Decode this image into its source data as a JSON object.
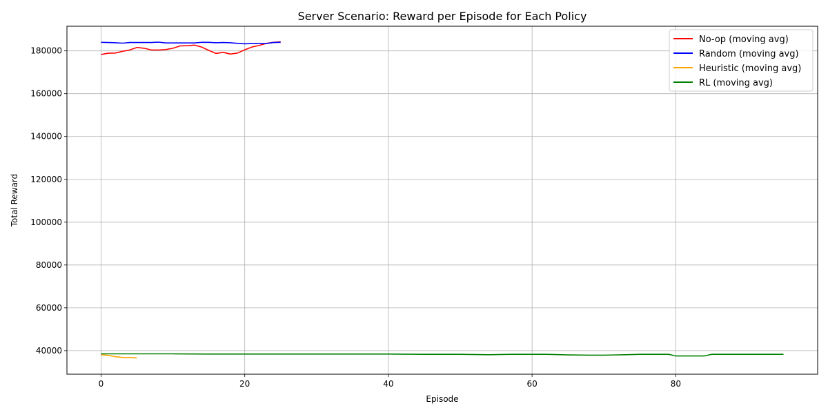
{
  "chart_data": {
    "type": "line",
    "title": "Server Scenario: Reward per Episode for Each Policy",
    "xlabel": "Episode",
    "ylabel": "Total Reward",
    "xlim": [
      -4.75,
      99.75
    ],
    "ylim": [
      29000,
      191500
    ],
    "xticks": [
      0,
      20,
      40,
      60,
      80
    ],
    "yticks": [
      40000,
      60000,
      80000,
      100000,
      120000,
      140000,
      160000,
      180000
    ],
    "grid": true,
    "legend_position": "top-right",
    "series": [
      {
        "name": "No-op (moving avg)",
        "color": "#ff0000",
        "x": [
          0,
          1,
          2,
          3,
          4,
          5,
          6,
          7,
          8,
          9,
          10,
          11,
          12,
          13,
          14,
          15,
          16,
          17,
          18,
          19,
          20,
          21,
          22,
          23,
          24,
          25
        ],
        "y": [
          178300,
          178900,
          179000,
          179800,
          180400,
          181600,
          181200,
          180400,
          180400,
          180600,
          181200,
          182300,
          182400,
          182700,
          181800,
          180200,
          178800,
          179300,
          178500,
          179000,
          180500,
          181800,
          182500,
          183500,
          184000,
          184200
        ]
      },
      {
        "name": "Random (moving avg)",
        "color": "#0000ff",
        "x": [
          0,
          1,
          2,
          3,
          4,
          5,
          6,
          7,
          8,
          9,
          10,
          11,
          12,
          13,
          14,
          15,
          16,
          17,
          18,
          19,
          20,
          21,
          22,
          23,
          24,
          25
        ],
        "y": [
          184000,
          183900,
          183800,
          183600,
          183900,
          183900,
          183900,
          183900,
          184100,
          183700,
          183700,
          183700,
          183700,
          183700,
          184000,
          184000,
          183800,
          183900,
          183800,
          183500,
          183300,
          183400,
          183400,
          183400,
          183900,
          184000
        ]
      },
      {
        "name": "Heuristic (moving avg)",
        "color": "#ffa500",
        "x": [
          0,
          1,
          2,
          3,
          4,
          5
        ],
        "y": [
          38100,
          37800,
          37200,
          36800,
          36800,
          36600
        ]
      },
      {
        "name": "RL (moving avg)",
        "color": "#008000",
        "x": [
          0,
          5,
          10,
          15,
          20,
          25,
          30,
          35,
          40,
          45,
          50,
          54,
          57,
          60,
          62,
          65,
          68,
          70,
          73,
          75,
          79,
          80,
          84,
          85,
          90,
          95
        ],
        "y": [
          38500,
          38500,
          38500,
          38400,
          38400,
          38400,
          38400,
          38400,
          38400,
          38300,
          38300,
          38100,
          38300,
          38300,
          38300,
          38000,
          37900,
          37900,
          38100,
          38300,
          38300,
          37500,
          37500,
          38300,
          38300,
          38300
        ]
      }
    ]
  }
}
